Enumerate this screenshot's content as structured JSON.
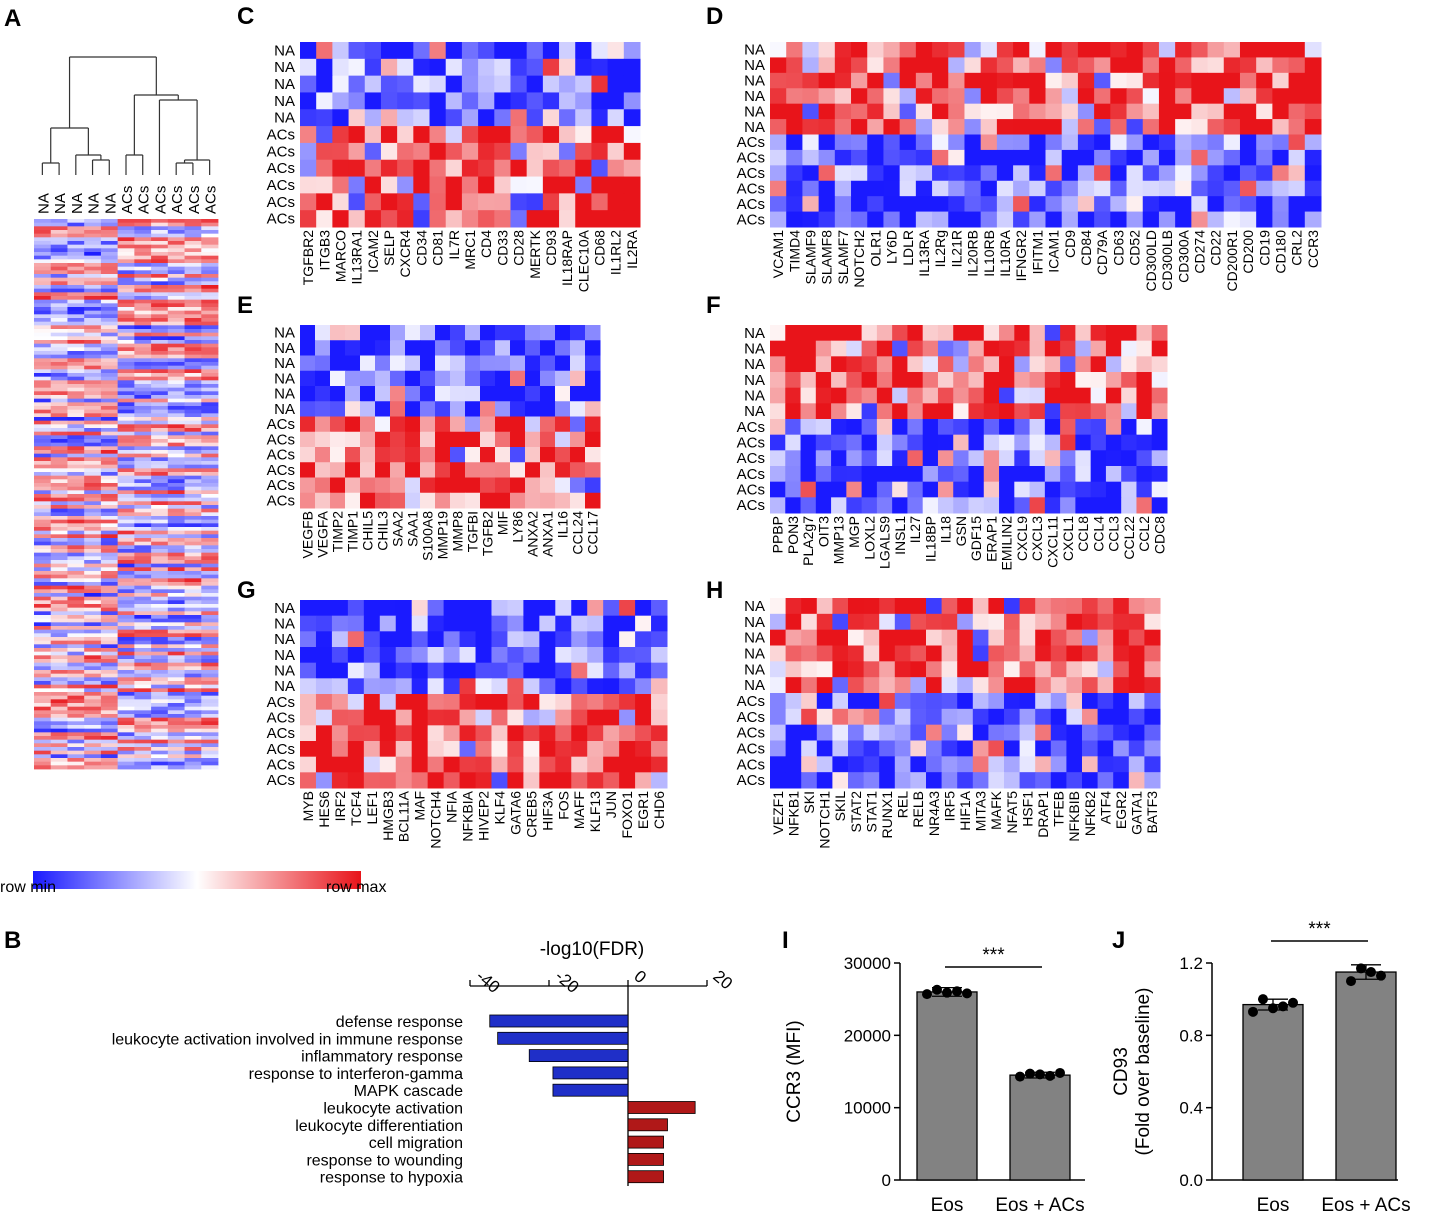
{
  "colors": {
    "low": "#1a1aff",
    "mid": "#ffffff",
    "high": "#e8141a",
    "bar_down": "#1f2fc8",
    "bar_up": "#b01818",
    "bar_gray": "#828282"
  },
  "panel_labels": {
    "A": "A",
    "B": "B",
    "C": "C",
    "D": "D",
    "E": "E",
    "F": "F",
    "G": "G",
    "H": "H",
    "I": "I",
    "J": "J"
  },
  "colorbar": {
    "min": "row min",
    "max": "row max"
  },
  "chart_data": [
    {
      "panel": "A",
      "type": "heatmap",
      "samples": [
        "NA",
        "NA",
        "NA",
        "NA",
        "NA",
        "ACs",
        "ACs",
        "ACs",
        "ACs",
        "ACs",
        "ACs"
      ],
      "cluster_order": [
        "NA",
        "NA",
        "NA",
        "NA",
        "NA",
        "ACs",
        "ACs",
        "ACs",
        "ACs",
        "ACs",
        "ACs"
      ]
    },
    {
      "panel": "B",
      "type": "bar",
      "title": "-log10(FDR)",
      "xlim": [
        -40,
        20
      ],
      "xticks": [
        -40,
        -20,
        0,
        20
      ],
      "categories": [
        "defense response",
        "leukocyte activation involved in immune response",
        "inflammatory response",
        "response to interferon-gamma",
        "MAPK cascade",
        "leukocyte activation",
        "leukocyte differentiation",
        "cell migration",
        "response to wounding",
        "response to hypoxia"
      ],
      "values": [
        -35,
        -33,
        -25,
        -19,
        -19,
        17,
        10,
        9,
        9,
        9
      ]
    },
    {
      "panel": "C",
      "type": "heatmap",
      "rows": [
        "NA",
        "NA",
        "NA",
        "NA",
        "NA",
        "ACs",
        "ACs",
        "ACs",
        "ACs",
        "ACs",
        "ACs"
      ],
      "columns": [
        "TGFBR2",
        "ITGB3",
        "MARCO",
        "IL13RA1",
        "ICAM2",
        "SELP",
        "CXCR4",
        "CD34",
        "CD81",
        "IL7R",
        "MRC1",
        "CD4",
        "CD33",
        "CD28",
        "MERTK",
        "CD93",
        "IL18RAP",
        "CLEC10A",
        "CD68",
        "IL1RL2",
        "IL2RA"
      ],
      "pattern": "up"
    },
    {
      "panel": "D",
      "type": "heatmap",
      "rows": [
        "NA",
        "NA",
        "NA",
        "NA",
        "NA",
        "NA",
        "ACs",
        "ACs",
        "ACs",
        "ACs",
        "ACs",
        "ACs"
      ],
      "columns": [
        "VCAM1",
        "TIMD4",
        "SLAMF9",
        "SLAMF8",
        "SLAMF7",
        "NOTCH2",
        "OLR1",
        "LY6D",
        "LDLR",
        "IL13RA",
        "IL2Rg",
        "IL21R",
        "IL20RB",
        "IL10RB",
        "IL10RA",
        "IFNGR2",
        "IFITM1",
        "ICAM1",
        "CD9",
        "CD84",
        "CD79A",
        "CD63",
        "CD52",
        "CD300LD",
        "CD300LB",
        "CD300A",
        "CD274",
        "CD22",
        "CD200R1",
        "CD200",
        "CD19",
        "CD180",
        "CRL2",
        "CCR3"
      ],
      "pattern": "down"
    },
    {
      "panel": "E",
      "type": "heatmap",
      "rows": [
        "NA",
        "NA",
        "NA",
        "NA",
        "NA",
        "NA",
        "ACs",
        "ACs",
        "ACs",
        "ACs",
        "ACs",
        "ACs"
      ],
      "columns": [
        "VEGFB",
        "VEGFA",
        "TIMP2",
        "TIMP1",
        "CHIL5",
        "CHIL3",
        "SAA2",
        "SAA1",
        "S100A8",
        "MMP19",
        "MMP8",
        "TGFBI",
        "TGFB2",
        "MIF",
        "LY86",
        "ANXA2",
        "ANXA1",
        "IL16",
        "CCL24",
        "CCL17"
      ],
      "pattern": "up"
    },
    {
      "panel": "F",
      "type": "heatmap",
      "rows": [
        "NA",
        "NA",
        "NA",
        "NA",
        "NA",
        "NA",
        "ACs",
        "ACs",
        "ACs",
        "ACs",
        "ACs",
        "ACs"
      ],
      "columns": [
        "PPBP",
        "PON3",
        "PLA2g7",
        "OIT3",
        "MMP13",
        "MGP",
        "LOXL2",
        "LGALS9",
        "INSL1",
        "IL27",
        "IL18BP",
        "IL18",
        "GSN",
        "GDF15",
        "ERAP1",
        "EMILIN2",
        "CXCL9",
        "CXCL3",
        "CXCL11",
        "CXCL1",
        "CCL8",
        "CCL4",
        "CCL3",
        "CCL22",
        "CCL2",
        "CDC8"
      ],
      "pattern": "down"
    },
    {
      "panel": "G",
      "type": "heatmap",
      "rows": [
        "NA",
        "NA",
        "NA",
        "NA",
        "NA",
        "NA",
        "ACs",
        "ACs",
        "ACs",
        "ACs",
        "ACs",
        "ACs"
      ],
      "columns": [
        "MYB",
        "HES6",
        "IRF2",
        "TCF4",
        "LEF1",
        "HMGB3",
        "BCL11A",
        "MAF",
        "NOTCH4",
        "NFIA",
        "NFKBIA",
        "HIVEP2",
        "KLF4",
        "GATA6",
        "CREB5",
        "HIF3A",
        "FOS",
        "MAFF",
        "KLF13",
        "JUN",
        "FOXO1",
        "EGR1",
        "CHD6"
      ],
      "pattern": "up"
    },
    {
      "panel": "H",
      "type": "heatmap",
      "rows": [
        "NA",
        "NA",
        "NA",
        "NA",
        "NA",
        "NA",
        "ACs",
        "ACs",
        "ACs",
        "ACs",
        "ACs",
        "ACs"
      ],
      "columns": [
        "VEZF1",
        "NFKB1",
        "SKI",
        "NOTCH1",
        "SKIL",
        "STAT2",
        "STAT1",
        "RUNX1",
        "REL",
        "RELB",
        "NR4A3",
        "IRF5",
        "HIF1A",
        "MITA3",
        "MAFK",
        "NFAT5",
        "HSF1",
        "DRAP1",
        "TFEB",
        "NFKBIB",
        "NFKB2",
        "ATF4",
        "EGR2",
        "GATA1",
        "BATF3"
      ],
      "pattern": "down"
    },
    {
      "panel": "I",
      "type": "bar",
      "categories": [
        "Eos",
        "Eos + ACs"
      ],
      "values": [
        26000,
        14500
      ],
      "errors": [
        600,
        400
      ],
      "points": [
        [
          25700,
          26300,
          25900,
          26100,
          25800
        ],
        [
          14300,
          14700,
          14600,
          14400,
          14800
        ]
      ],
      "ylabel": "CCR3 (MFI)",
      "ylim": [
        0,
        30000
      ],
      "yticks": [
        "0",
        "10000",
        "20000",
        "30000"
      ],
      "significance": "***"
    },
    {
      "panel": "J",
      "type": "bar",
      "categories": [
        "Eos",
        "Eos + ACs"
      ],
      "values": [
        0.97,
        1.15
      ],
      "errors": [
        0.03,
        0.04
      ],
      "points": [
        [
          0.93,
          1.0,
          0.95,
          0.96,
          0.98
        ],
        [
          1.1,
          1.17,
          1.15,
          1.13
        ]
      ],
      "ylabel": "CD93",
      "ylabel2": "(Fold over baseline)",
      "ylim": [
        0,
        1.2
      ],
      "yticks": [
        "0.0",
        "0.4",
        "0.8",
        "1.2"
      ],
      "significance": "***"
    }
  ]
}
